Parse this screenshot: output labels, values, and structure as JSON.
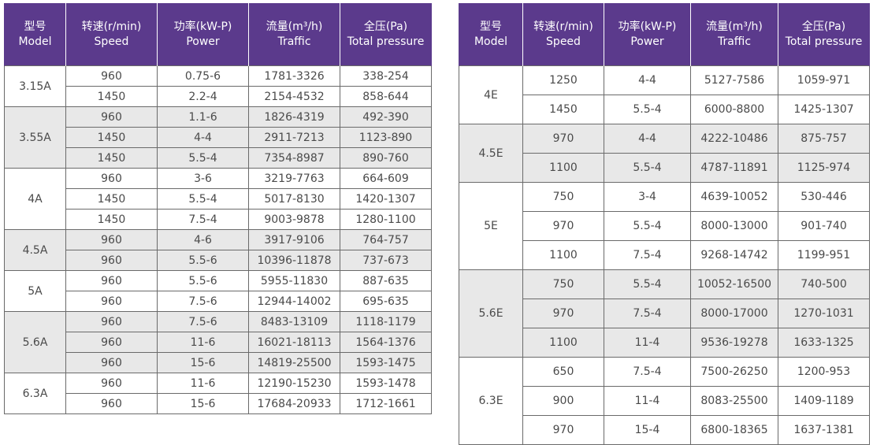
{
  "headers": [
    {
      "zh": "型号",
      "en": "Model"
    },
    {
      "zh": "转速(r/min)",
      "en": "Speed"
    },
    {
      "zh": "功率(kW-P)",
      "en": "Power"
    },
    {
      "zh": "流量(m³/h)",
      "en": "Traffic"
    },
    {
      "zh": "全压(Pa)",
      "en": "Total pressure"
    }
  ],
  "tables": [
    {
      "groups": [
        {
          "model": "3.15A",
          "rows": [
            {
              "speed": "960",
              "power": "0.75-6",
              "traffic": "1781-3326",
              "pressure": "338-254"
            },
            {
              "speed": "1450",
              "power": "2.2-4",
              "traffic": "2154-4532",
              "pressure": "858-644"
            }
          ]
        },
        {
          "model": "3.55A",
          "rows": [
            {
              "speed": "960",
              "power": "1.1-6",
              "traffic": "1826-4319",
              "pressure": "492-390"
            },
            {
              "speed": "1450",
              "power": "4-4",
              "traffic": "2911-7213",
              "pressure": "1123-890"
            },
            {
              "speed": "1450",
              "power": "5.5-4",
              "traffic": "7354-8987",
              "pressure": "890-760"
            }
          ]
        },
        {
          "model": "4A",
          "rows": [
            {
              "speed": "960",
              "power": "3-6",
              "traffic": "3219-7763",
              "pressure": "664-609"
            },
            {
              "speed": "1450",
              "power": "5.5-4",
              "traffic": "5017-8130",
              "pressure": "1420-1307"
            },
            {
              "speed": "1450",
              "power": "7.5-4",
              "traffic": "9003-9878",
              "pressure": "1280-1100"
            }
          ]
        },
        {
          "model": "4.5A",
          "rows": [
            {
              "speed": "960",
              "power": "4-6",
              "traffic": "3917-9106",
              "pressure": "764-757"
            },
            {
              "speed": "960",
              "power": "5.5-6",
              "traffic": "10396-11878",
              "pressure": "737-673"
            }
          ]
        },
        {
          "model": "5A",
          "rows": [
            {
              "speed": "960",
              "power": "5.5-6",
              "traffic": "5955-11830",
              "pressure": "887-635"
            },
            {
              "speed": "960",
              "power": "7.5-6",
              "traffic": "12944-14002",
              "pressure": "695-635"
            }
          ]
        },
        {
          "model": "5.6A",
          "rows": [
            {
              "speed": "960",
              "power": "7.5-6",
              "traffic": "8483-13109",
              "pressure": "1118-1179"
            },
            {
              "speed": "960",
              "power": "11-6",
              "traffic": "16021-18113",
              "pressure": "1564-1376"
            },
            {
              "speed": "960",
              "power": "15-6",
              "traffic": "14819-25500",
              "pressure": "1593-1475"
            }
          ]
        },
        {
          "model": "6.3A",
          "rows": [
            {
              "speed": "960",
              "power": "11-6",
              "traffic": "12190-15230",
              "pressure": "1593-1478"
            },
            {
              "speed": "960",
              "power": "15-6",
              "traffic": "17684-20933",
              "pressure": "1712-1661"
            }
          ]
        }
      ]
    },
    {
      "groups": [
        {
          "model": "4E",
          "rows": [
            {
              "speed": "1250",
              "power": "4-4",
              "traffic": "5127-7586",
              "pressure": "1059-971"
            },
            {
              "speed": "1450",
              "power": "5.5-4",
              "traffic": "6000-8800",
              "pressure": "1425-1307"
            }
          ]
        },
        {
          "model": "4.5E",
          "rows": [
            {
              "speed": "970",
              "power": "4-4",
              "traffic": "4222-10486",
              "pressure": "875-757"
            },
            {
              "speed": "1100",
              "power": "5.5-4",
              "traffic": "4787-11891",
              "pressure": "1125-974"
            }
          ]
        },
        {
          "model": "5E",
          "rows": [
            {
              "speed": "750",
              "power": "3-4",
              "traffic": "4639-10052",
              "pressure": "530-446"
            },
            {
              "speed": "970",
              "power": "5.5-4",
              "traffic": "8000-13000",
              "pressure": "901-740"
            },
            {
              "speed": "1100",
              "power": "7.5-4",
              "traffic": "9268-14742",
              "pressure": "1199-951"
            }
          ]
        },
        {
          "model": "5.6E",
          "rows": [
            {
              "speed": "750",
              "power": "5.5-4",
              "traffic": "10052-16500",
              "pressure": "740-500"
            },
            {
              "speed": "970",
              "power": "7.5-4",
              "traffic": "8000-17000",
              "pressure": "1270-1031"
            },
            {
              "speed": "1100",
              "power": "11-4",
              "traffic": "9536-19278",
              "pressure": "1633-1325"
            }
          ]
        },
        {
          "model": "6.3E",
          "rows": [
            {
              "speed": "650",
              "power": "7.5-4",
              "traffic": "7500-26250",
              "pressure": "1200-953"
            },
            {
              "speed": "900",
              "power": "11-4",
              "traffic": "8083-25500",
              "pressure": "1409-1189"
            },
            {
              "speed": "970",
              "power": "15-4",
              "traffic": "6800-18365",
              "pressure": "1637-1381"
            }
          ]
        }
      ]
    }
  ]
}
